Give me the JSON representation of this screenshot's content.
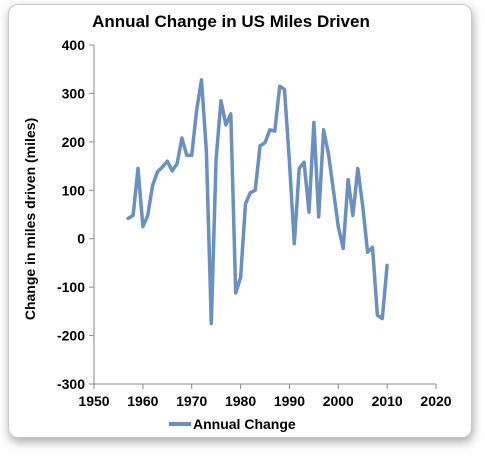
{
  "chart_data": {
    "type": "line",
    "title": "Annual Change in US Miles Driven",
    "xlabel": "",
    "ylabel": "Change in miles driven (miles)",
    "xlim": [
      1950,
      2020
    ],
    "ylim": [
      -300,
      400
    ],
    "xticks": [
      1950,
      1960,
      1970,
      1980,
      1990,
      2000,
      2010,
      2020
    ],
    "yticks": [
      400,
      300,
      200,
      100,
      0,
      -100,
      -200,
      -300
    ],
    "grid": false,
    "legend_position": "bottom",
    "series": [
      {
        "name": "Annual Change",
        "color": "#6b8fbf",
        "x": [
          1957,
          1958,
          1959,
          1960,
          1961,
          1962,
          1963,
          1964,
          1965,
          1966,
          1967,
          1968,
          1969,
          1970,
          1971,
          1972,
          1973,
          1974,
          1975,
          1976,
          1977,
          1978,
          1979,
          1980,
          1981,
          1982,
          1983,
          1984,
          1985,
          1986,
          1987,
          1988,
          1989,
          1990,
          1991,
          1992,
          1993,
          1994,
          1995,
          1996,
          1997,
          1998,
          1999,
          2000,
          2001,
          2002,
          2003,
          2004,
          2005,
          2006,
          2007,
          2008,
          2009,
          2010
        ],
        "y": [
          42,
          48,
          145,
          25,
          48,
          110,
          138,
          148,
          160,
          140,
          155,
          208,
          172,
          172,
          265,
          328,
          180,
          -175,
          165,
          285,
          235,
          258,
          -112,
          -80,
          72,
          95,
          100,
          192,
          198,
          225,
          222,
          315,
          308,
          160,
          -10,
          145,
          158,
          55,
          240,
          45,
          225,
          175,
          100,
          25,
          -20,
          122,
          48,
          145,
          68,
          -28,
          -18,
          -158,
          -165,
          -55
        ]
      }
    ]
  }
}
